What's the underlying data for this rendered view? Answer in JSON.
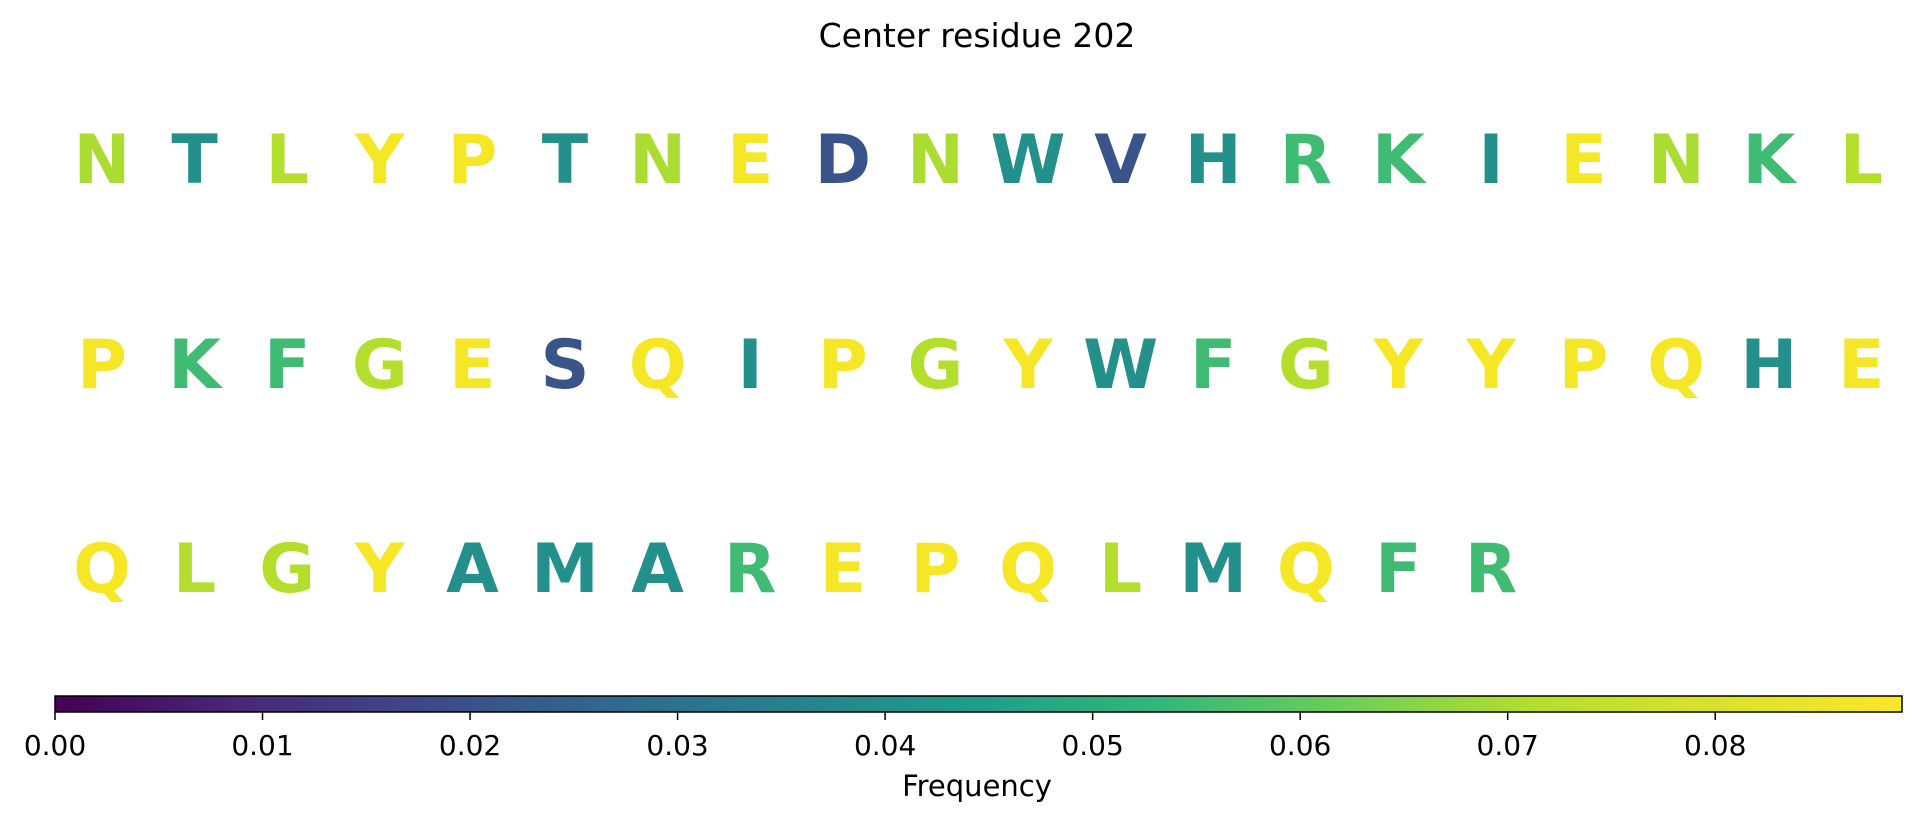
{
  "chart_data": {
    "type": "sequence-frequency",
    "title": "Center residue 202",
    "residues": [
      {
        "letter": "N",
        "frequency": 0.07
      },
      {
        "letter": "T",
        "frequency": 0.04
      },
      {
        "letter": "L",
        "frequency": 0.071
      },
      {
        "letter": "Y",
        "frequency": 0.087
      },
      {
        "letter": "P",
        "frequency": 0.087
      },
      {
        "letter": "T",
        "frequency": 0.04
      },
      {
        "letter": "N",
        "frequency": 0.07
      },
      {
        "letter": "E",
        "frequency": 0.087
      },
      {
        "letter": "D",
        "frequency": 0.021
      },
      {
        "letter": "N",
        "frequency": 0.07
      },
      {
        "letter": "W",
        "frequency": 0.04
      },
      {
        "letter": "V",
        "frequency": 0.021
      },
      {
        "letter": "H",
        "frequency": 0.04
      },
      {
        "letter": "R",
        "frequency": 0.055
      },
      {
        "letter": "K",
        "frequency": 0.055
      },
      {
        "letter": "I",
        "frequency": 0.04
      },
      {
        "letter": "E",
        "frequency": 0.087
      },
      {
        "letter": "N",
        "frequency": 0.07
      },
      {
        "letter": "K",
        "frequency": 0.055
      },
      {
        "letter": "L",
        "frequency": 0.071
      },
      {
        "letter": "P",
        "frequency": 0.087
      },
      {
        "letter": "K",
        "frequency": 0.055
      },
      {
        "letter": "F",
        "frequency": 0.055
      },
      {
        "letter": "G",
        "frequency": 0.071
      },
      {
        "letter": "E",
        "frequency": 0.087
      },
      {
        "letter": "S",
        "frequency": 0.021
      },
      {
        "letter": "Q",
        "frequency": 0.087
      },
      {
        "letter": "I",
        "frequency": 0.04
      },
      {
        "letter": "P",
        "frequency": 0.087
      },
      {
        "letter": "G",
        "frequency": 0.071
      },
      {
        "letter": "Y",
        "frequency": 0.087
      },
      {
        "letter": "W",
        "frequency": 0.04
      },
      {
        "letter": "F",
        "frequency": 0.055
      },
      {
        "letter": "G",
        "frequency": 0.071
      },
      {
        "letter": "Y",
        "frequency": 0.087
      },
      {
        "letter": "Y",
        "frequency": 0.087
      },
      {
        "letter": "P",
        "frequency": 0.087
      },
      {
        "letter": "Q",
        "frequency": 0.087
      },
      {
        "letter": "H",
        "frequency": 0.04
      },
      {
        "letter": "E",
        "frequency": 0.087
      },
      {
        "letter": "Q",
        "frequency": 0.087
      },
      {
        "letter": "L",
        "frequency": 0.071
      },
      {
        "letter": "G",
        "frequency": 0.071
      },
      {
        "letter": "Y",
        "frequency": 0.087
      },
      {
        "letter": "A",
        "frequency": 0.04
      },
      {
        "letter": "M",
        "frequency": 0.04
      },
      {
        "letter": "A",
        "frequency": 0.04
      },
      {
        "letter": "R",
        "frequency": 0.055
      },
      {
        "letter": "E",
        "frequency": 0.087
      },
      {
        "letter": "P",
        "frequency": 0.087
      },
      {
        "letter": "Q",
        "frequency": 0.087
      },
      {
        "letter": "L",
        "frequency": 0.071
      },
      {
        "letter": "M",
        "frequency": 0.04
      },
      {
        "letter": "Q",
        "frequency": 0.087
      },
      {
        "letter": "F",
        "frequency": 0.055
      },
      {
        "letter": "R",
        "frequency": 0.055
      }
    ],
    "residues_per_row": 20,
    "colorbar": {
      "label": "Frequency",
      "colormap": "viridis",
      "range": [
        0,
        0.089
      ],
      "ticks": [
        0.0,
        0.01,
        0.02,
        0.03,
        0.04,
        0.05,
        0.06,
        0.07,
        0.08
      ],
      "tick_labels": [
        "0.00",
        "0.01",
        "0.02",
        "0.03",
        "0.04",
        "0.05",
        "0.06",
        "0.07",
        "0.08"
      ]
    }
  }
}
